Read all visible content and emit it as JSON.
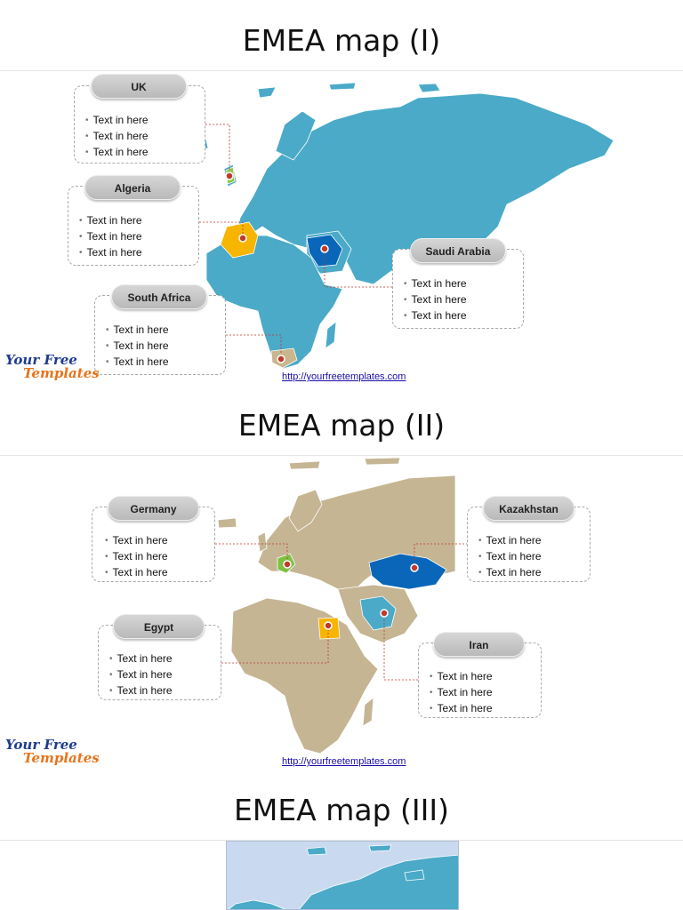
{
  "sections": [
    {
      "title": "EMEA map (I)",
      "map_color": "#4aaac8",
      "callouts": [
        {
          "name": "UK",
          "items": [
            "Text in here",
            "Text in here",
            "Text in here"
          ],
          "highlight": "#8cc63f"
        },
        {
          "name": "Algeria",
          "items": [
            "Text in here",
            "Text in here",
            "Text in here"
          ],
          "highlight": "#f7b500"
        },
        {
          "name": "Saudi Arabia",
          "items": [
            "Text in here",
            "Text in here",
            "Text in here"
          ],
          "highlight": "#0a66b8"
        },
        {
          "name": "South Africa",
          "items": [
            "Text in here",
            "Text in here",
            "Text in here"
          ],
          "highlight": "#c9b68e"
        }
      ],
      "link": "http://yourfreetemplates.com"
    },
    {
      "title": "EMEA map (II)",
      "map_color": "#c5b593",
      "callouts": [
        {
          "name": "Germany",
          "items": [
            "Text in here",
            "Text in here",
            "Text in here"
          ],
          "highlight": "#7dc142"
        },
        {
          "name": "Kazakhstan",
          "items": [
            "Text in here",
            "Text in here",
            "Text in here"
          ],
          "highlight": "#0a66b8"
        },
        {
          "name": "Egypt",
          "items": [
            "Text in here",
            "Text in here",
            "Text in here"
          ],
          "highlight": "#f7b500"
        },
        {
          "name": "Iran",
          "items": [
            "Text in here",
            "Text in here",
            "Text in here"
          ],
          "highlight": "#4aaac8"
        }
      ],
      "link": "http://yourfreetemplates.com"
    },
    {
      "title": "EMEA map (III)",
      "map_color": "#4aaac8"
    }
  ],
  "logo": {
    "line1": "Your Free",
    "line2": "Templates"
  },
  "colors": {
    "sea": "#c9daf0",
    "leader": "#c0392b",
    "pin": "#c0392b"
  }
}
